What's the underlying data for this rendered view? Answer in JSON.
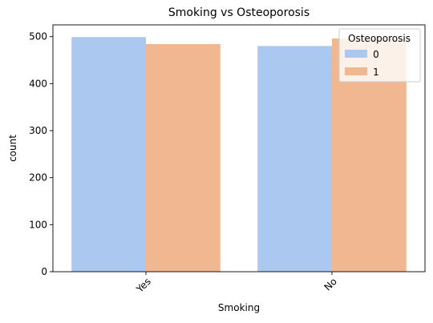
{
  "chart_data": {
    "type": "bar",
    "title": "Smoking vs Osteoporosis",
    "xlabel": "Smoking",
    "ylabel": "count",
    "categories": [
      "Yes",
      "No"
    ],
    "ylim": [
      0,
      525
    ],
    "yticks": [
      0,
      100,
      200,
      300,
      400,
      500
    ],
    "grid": false,
    "legend": {
      "title": "Osteoporosis",
      "placement": "top-right"
    },
    "series": [
      {
        "name": "0",
        "values": [
          499,
          480
        ],
        "color": "#abc9f0"
      },
      {
        "name": "1",
        "values": [
          484,
          496
        ],
        "color": "#f0b791"
      }
    ]
  }
}
